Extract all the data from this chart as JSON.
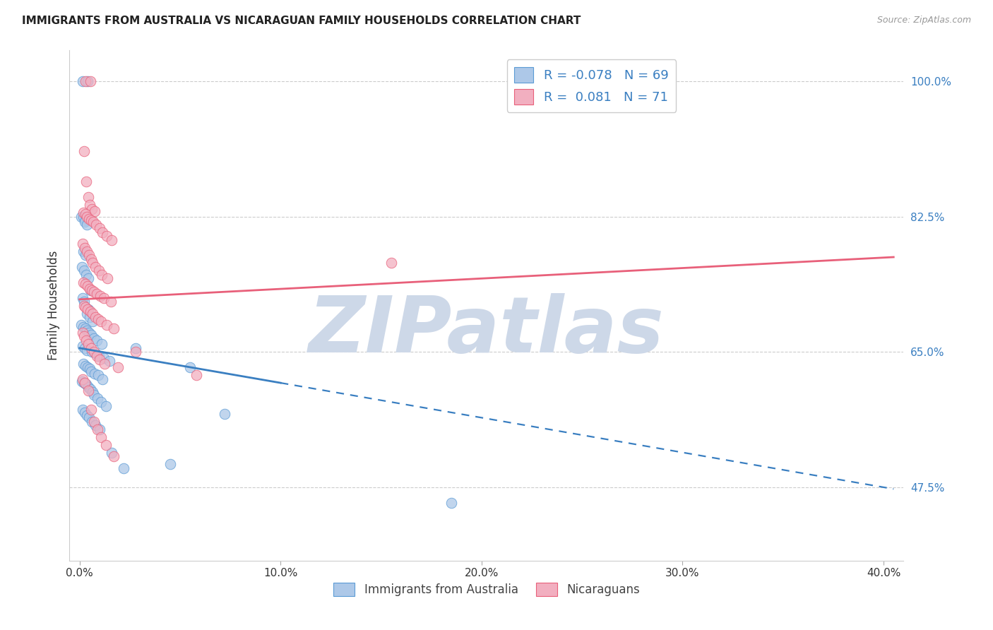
{
  "title": "IMMIGRANTS FROM AUSTRALIA VS NICARAGUAN FAMILY HOUSEHOLDS CORRELATION CHART",
  "source": "Source: ZipAtlas.com",
  "ylabel": "Family Households",
  "x_tick_labels": [
    "0.0%",
    "10.0%",
    "20.0%",
    "30.0%",
    "40.0%"
  ],
  "x_tick_vals": [
    0.0,
    10.0,
    20.0,
    30.0,
    40.0
  ],
  "y_tick_vals_right": [
    100.0,
    82.5,
    65.0,
    47.5
  ],
  "y_tick_labels_right": [
    "100.0%",
    "82.5%",
    "65.0%",
    "47.5%"
  ],
  "ylim": [
    38.0,
    104.0
  ],
  "xlim": [
    -0.5,
    41.0
  ],
  "legend_r_blue": "-0.078",
  "legend_n_blue": "69",
  "legend_r_pink": "0.081",
  "legend_n_pink": "71",
  "legend_label_blue": "Immigrants from Australia",
  "legend_label_pink": "Nicaraguans",
  "blue_color": "#adc8e8",
  "pink_color": "#f2afc0",
  "blue_edge_color": "#5b9bd5",
  "pink_edge_color": "#e8607a",
  "blue_line_color": "#3a7fc1",
  "pink_line_color": "#e8607a",
  "watermark": "ZIPatlas",
  "watermark_color": "#cdd8e8",
  "grid_color": "#cccccc",
  "blue_line_y0": 65.5,
  "blue_line_slope": -0.45,
  "blue_solid_end": 10.0,
  "blue_dash_end": 40.5,
  "pink_line_y0": 71.8,
  "pink_line_slope": 0.135,
  "pink_line_end": 40.5,
  "blue_scatter_x": [
    0.15,
    0.4,
    0.1,
    0.2,
    0.3,
    0.25,
    0.35,
    0.18,
    0.28,
    0.12,
    0.22,
    0.32,
    0.42,
    0.55,
    0.14,
    0.24,
    0.45,
    0.38,
    0.52,
    0.65,
    0.08,
    0.18,
    0.28,
    0.38,
    0.48,
    0.58,
    0.72,
    0.85,
    1.1,
    0.16,
    0.26,
    0.36,
    0.62,
    0.78,
    0.95,
    1.2,
    1.5,
    0.19,
    0.29,
    0.39,
    0.49,
    0.59,
    0.75,
    0.92,
    1.15,
    0.13,
    0.23,
    0.33,
    0.43,
    0.53,
    0.63,
    0.73,
    0.88,
    1.05,
    1.3,
    2.8,
    5.5,
    7.2,
    0.17,
    0.27,
    0.37,
    0.47,
    0.6,
    0.8,
    1.0,
    1.6,
    2.2,
    4.5,
    18.5
  ],
  "blue_scatter_y": [
    100.0,
    100.0,
    82.5,
    82.5,
    82.0,
    81.8,
    81.5,
    78.0,
    77.5,
    76.0,
    75.5,
    75.0,
    74.5,
    73.0,
    72.0,
    71.5,
    70.5,
    70.0,
    69.5,
    69.0,
    68.5,
    68.2,
    68.0,
    67.8,
    67.5,
    67.2,
    66.8,
    66.5,
    66.0,
    65.8,
    65.5,
    65.2,
    65.0,
    64.8,
    64.5,
    64.2,
    63.8,
    63.5,
    63.2,
    63.0,
    62.8,
    62.5,
    62.2,
    62.0,
    61.5,
    61.2,
    61.0,
    60.8,
    60.5,
    60.2,
    59.8,
    59.5,
    59.0,
    58.5,
    58.0,
    65.5,
    63.0,
    57.0,
    57.5,
    57.2,
    56.8,
    56.5,
    56.0,
    55.5,
    55.0,
    52.0,
    50.0,
    50.5,
    45.5
  ],
  "pink_scatter_x": [
    0.3,
    0.55,
    0.22,
    0.32,
    0.42,
    0.52,
    0.62,
    0.75,
    0.18,
    0.28,
    0.38,
    0.48,
    0.58,
    0.68,
    0.82,
    0.98,
    1.15,
    1.35,
    1.6,
    0.16,
    0.26,
    0.36,
    0.46,
    0.56,
    0.66,
    0.8,
    0.95,
    1.1,
    1.4,
    0.19,
    0.29,
    0.39,
    0.52,
    0.62,
    0.72,
    0.86,
    1.02,
    1.2,
    1.55,
    0.21,
    0.31,
    0.41,
    0.54,
    0.65,
    0.78,
    0.92,
    1.08,
    1.35,
    1.7,
    0.14,
    0.24,
    0.34,
    0.44,
    0.57,
    0.7,
    0.85,
    1.0,
    1.25,
    1.9,
    5.8,
    0.17,
    0.27,
    0.44,
    0.58,
    0.72,
    0.88,
    1.05,
    1.3,
    1.7,
    2.8,
    15.5
  ],
  "pink_scatter_y": [
    100.0,
    100.0,
    91.0,
    87.0,
    85.0,
    84.0,
    83.5,
    83.2,
    83.0,
    82.8,
    82.5,
    82.2,
    82.0,
    81.8,
    81.5,
    81.0,
    80.5,
    80.0,
    79.5,
    79.0,
    78.5,
    78.0,
    77.5,
    77.0,
    76.5,
    76.0,
    75.5,
    75.0,
    74.5,
    74.0,
    73.8,
    73.5,
    73.2,
    73.0,
    72.8,
    72.5,
    72.2,
    72.0,
    71.5,
    71.0,
    70.8,
    70.5,
    70.2,
    70.0,
    69.5,
    69.2,
    69.0,
    68.5,
    68.0,
    67.5,
    67.0,
    66.5,
    66.0,
    65.5,
    65.0,
    64.5,
    64.0,
    63.5,
    63.0,
    62.0,
    61.5,
    61.0,
    60.0,
    57.5,
    56.0,
    55.0,
    54.0,
    53.0,
    51.5,
    65.0,
    76.5
  ]
}
